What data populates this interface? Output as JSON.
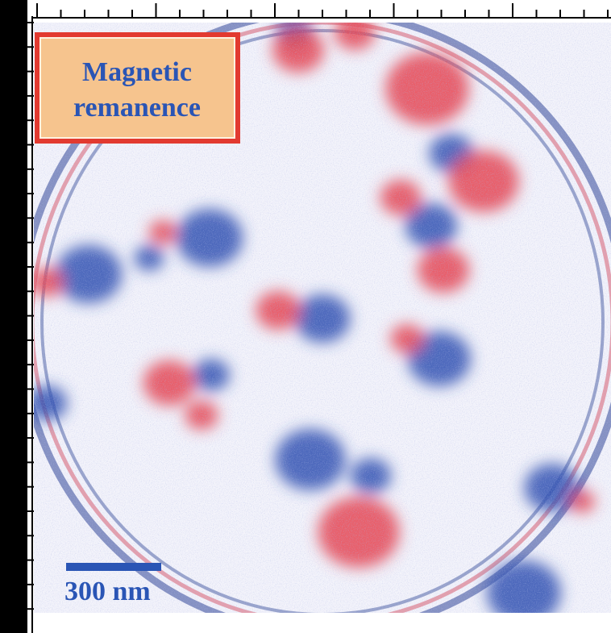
{
  "label": {
    "line1": "Magnetic",
    "line2": "remanence"
  },
  "scale_bar": {
    "label": "300 nm"
  }
}
